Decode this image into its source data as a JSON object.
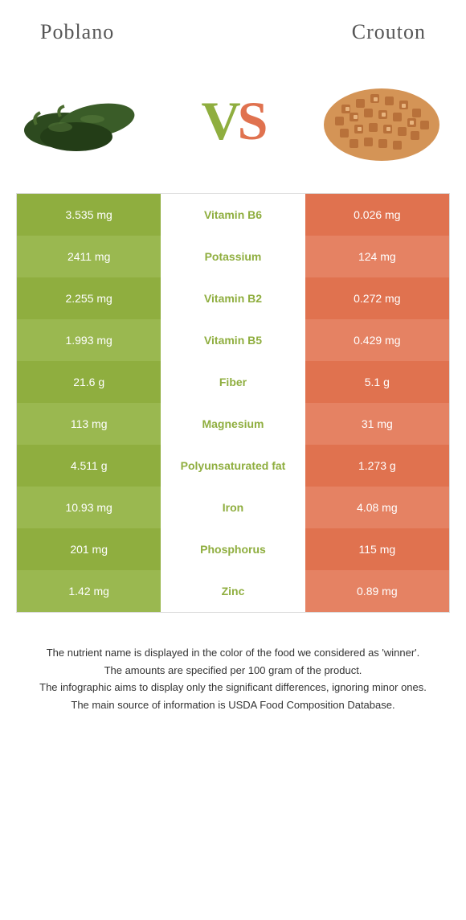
{
  "header": {
    "left_title": "Poblano",
    "right_title": "Crouton"
  },
  "vs": {
    "v": "V",
    "s": "S"
  },
  "colors": {
    "left": "#8fae3f",
    "left_alt": "#9ab850",
    "right": "#e0724f",
    "right_alt": "#e58263",
    "mid_winner_left": "#8fae3f",
    "mid_winner_right": "#e0724f"
  },
  "rows": [
    {
      "left": "3.535 mg",
      "mid": "Vitamin B6",
      "right": "0.026 mg",
      "winner": "left"
    },
    {
      "left": "2411 mg",
      "mid": "Potassium",
      "right": "124 mg",
      "winner": "left"
    },
    {
      "left": "2.255 mg",
      "mid": "Vitamin B2",
      "right": "0.272 mg",
      "winner": "left"
    },
    {
      "left": "1.993 mg",
      "mid": "Vitamin B5",
      "right": "0.429 mg",
      "winner": "left"
    },
    {
      "left": "21.6 g",
      "mid": "Fiber",
      "right": "5.1 g",
      "winner": "left"
    },
    {
      "left": "113 mg",
      "mid": "Magnesium",
      "right": "31 mg",
      "winner": "left"
    },
    {
      "left": "4.511 g",
      "mid": "Polyunsaturated fat",
      "right": "1.273 g",
      "winner": "left"
    },
    {
      "left": "10.93 mg",
      "mid": "Iron",
      "right": "4.08 mg",
      "winner": "left"
    },
    {
      "left": "201 mg",
      "mid": "Phosphorus",
      "right": "115 mg",
      "winner": "left"
    },
    {
      "left": "1.42 mg",
      "mid": "Zinc",
      "right": "0.89 mg",
      "winner": "left"
    }
  ],
  "footer": {
    "line1": "The nutrient name is displayed in the color of the food we considered as 'winner'.",
    "line2": "The amounts are specified per 100 gram of the product.",
    "line3": "The infographic aims to display only the significant differences, ignoring minor ones.",
    "line4": "The main source of information is USDA Food Composition Database."
  }
}
